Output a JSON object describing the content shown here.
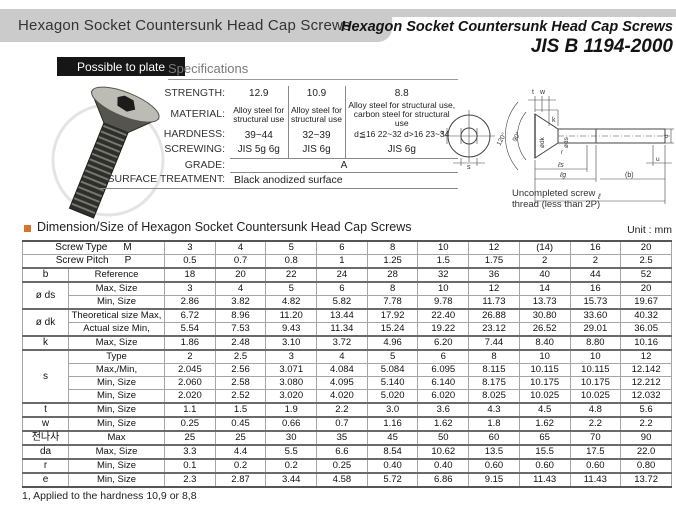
{
  "page": {
    "header_bar_title": "Hexagon Socket Countersunk Head Cap Screws",
    "title_right_line1": "Hexagon Socket Countersunk Head Cap Screws",
    "title_right_line2": "JIS B 1194-2000",
    "plate_badge": "Possible to plate",
    "specifications_heading": "Specifications",
    "dimension_title": "Dimension/Size of Hexagon Socket Countersunk Head Cap Screws",
    "unit_label": "Unit : mm",
    "footnote": "1, Applied to the hardness 10,9 or 8,8",
    "bullet_color": "#d9722c"
  },
  "specifications": {
    "row_labels": [
      "STRENGTH:",
      "MATERIAL:",
      "HARDNESS:",
      "SCREWING:",
      "GRADE:",
      "SURFACE TREATMENT:"
    ],
    "columns": [
      {
        "strength": "12.9",
        "material": "Alloy steel for structural use",
        "hardness": "39~44",
        "screwing": "JIS 5g 6g"
      },
      {
        "strength": "10.9",
        "material": "Alloy steel for structural use",
        "hardness": "32~39",
        "screwing": "JIS 6g"
      },
      {
        "strength": "8.8",
        "material": "Alloy steel for structural use, carbon steel for structural use",
        "hardness": "d≦16 22~32  d>16 23~34",
        "screwing": "JIS 6g"
      }
    ],
    "grade_value": "A",
    "surface_treatment_value": "Black anodized surface"
  },
  "drawing": {
    "front_labels": {
      "s": "s",
      "e": "e"
    },
    "side_labels": {
      "t": "t",
      "w": "w",
      "k": "k",
      "dk": "ødk",
      "ds": "øds",
      "r": "r",
      "ls": "ℓs",
      "lg": "ℓg",
      "b": "(b)",
      "l": "ℓ",
      "d": "d",
      "u": "u",
      "a120": "120°",
      "a90": "90°"
    },
    "caption_line1": "Uncompleted screw",
    "caption_line2": "thread (less than 2P)"
  },
  "dimension_table": {
    "header_rows": [
      {
        "name": "Screw Type",
        "sym": "M",
        "values": [
          "3",
          "4",
          "5",
          "6",
          "8",
          "10",
          "12",
          "(14)",
          "16",
          "20"
        ]
      },
      {
        "name": "Screw Pitch",
        "sym": "P",
        "values": [
          "0.5",
          "0.7",
          "0.8",
          "1",
          "1.25",
          "1.5",
          "1.75",
          "2",
          "2",
          "2.5"
        ]
      }
    ],
    "groups": [
      {
        "symbol": "b",
        "rows": [
          {
            "desc": "Reference",
            "values": [
              "18",
              "20",
              "22",
              "24",
              "28",
              "32",
              "36",
              "40",
              "44",
              "52"
            ]
          }
        ]
      },
      {
        "symbol": "ø ds",
        "rows": [
          {
            "desc": "Max, Size",
            "values": [
              "3",
              "4",
              "5",
              "6",
              "8",
              "10",
              "12",
              "14",
              "16",
              "20"
            ]
          },
          {
            "desc": "Min, Size",
            "values": [
              "2.86",
              "3.82",
              "4.82",
              "5.82",
              "7.78",
              "9.78",
              "11.73",
              "13.73",
              "15.73",
              "19.67"
            ]
          }
        ]
      },
      {
        "symbol": "ø dk",
        "rows": [
          {
            "desc": "Theoretical size Max,",
            "values": [
              "6.72",
              "8.96",
              "11.20",
              "13.44",
              "17.92",
              "22.40",
              "26.88",
              "30.80",
              "33.60",
              "40.32"
            ]
          },
          {
            "desc": "Actual size Min,",
            "values": [
              "5.54",
              "7.53",
              "9.43",
              "11.34",
              "15.24",
              "19.22",
              "23.12",
              "26.52",
              "29.01",
              "36.05"
            ]
          }
        ]
      },
      {
        "symbol": "k",
        "rows": [
          {
            "desc": "Max, Size",
            "values": [
              "1.86",
              "2.48",
              "3.10",
              "3.72",
              "4.96",
              "6.20",
              "7.44",
              "8.40",
              "8.80",
              "10.16"
            ]
          }
        ]
      },
      {
        "symbol": "s",
        "rows": [
          {
            "desc": "Type",
            "values": [
              "2",
              "2.5",
              "3",
              "4",
              "5",
              "6",
              "8",
              "10",
              "10",
              "12"
            ]
          },
          {
            "desc": "Max,/Min,",
            "values": [
              "2.045",
              "2.56",
              "3.071",
              "4.084",
              "5.084",
              "6.095",
              "8.115",
              "10.115",
              "10.115",
              "12.142"
            ]
          },
          {
            "desc": "Min, Size",
            "values": [
              "2.060",
              "2.58",
              "3.080",
              "4.095",
              "5.140",
              "6.140",
              "8.175",
              "10.175",
              "10.175",
              "12.212"
            ]
          },
          {
            "desc": "Min, Size",
            "values": [
              "2.020",
              "2.52",
              "3.020",
              "4.020",
              "5.020",
              "6.020",
              "8.025",
              "10.025",
              "10.025",
              "12.032"
            ]
          }
        ]
      },
      {
        "symbol": "t",
        "rows": [
          {
            "desc": "Min, Size",
            "values": [
              "1.1",
              "1.5",
              "1.9",
              "2.2",
              "3.0",
              "3.6",
              "4.3",
              "4.5",
              "4.8",
              "5.6"
            ]
          }
        ]
      },
      {
        "symbol": "w",
        "rows": [
          {
            "desc": "Min, Size",
            "values": [
              "0.25",
              "0.45",
              "0.66",
              "0.7",
              "1.16",
              "1.62",
              "1.8",
              "1.62",
              "2.2",
              "2.2"
            ]
          }
        ]
      },
      {
        "symbol": "전나사",
        "rows": [
          {
            "desc": "Max",
            "values": [
              "25",
              "25",
              "30",
              "35",
              "45",
              "50",
              "60",
              "65",
              "70",
              "90"
            ]
          }
        ]
      },
      {
        "symbol": "da",
        "rows": [
          {
            "desc": "Max, Size",
            "values": [
              "3.3",
              "4.4",
              "5.5",
              "6.6",
              "8.54",
              "10.62",
              "13.5",
              "15.5",
              "17.5",
              "22.0"
            ]
          }
        ]
      },
      {
        "symbol": "r",
        "rows": [
          {
            "desc": "Min, Size",
            "values": [
              "0.1",
              "0.2",
              "0.2",
              "0.25",
              "0.40",
              "0.40",
              "0.60",
              "0.60",
              "0.60",
              "0.80"
            ]
          }
        ]
      },
      {
        "symbol": "e",
        "rows": [
          {
            "desc": "Min, Size",
            "values": [
              "2.3",
              "2.87",
              "3.44",
              "4.58",
              "5.72",
              "6.86",
              "9.15",
              "11.43",
              "11.43",
              "13.72"
            ]
          }
        ]
      }
    ]
  }
}
